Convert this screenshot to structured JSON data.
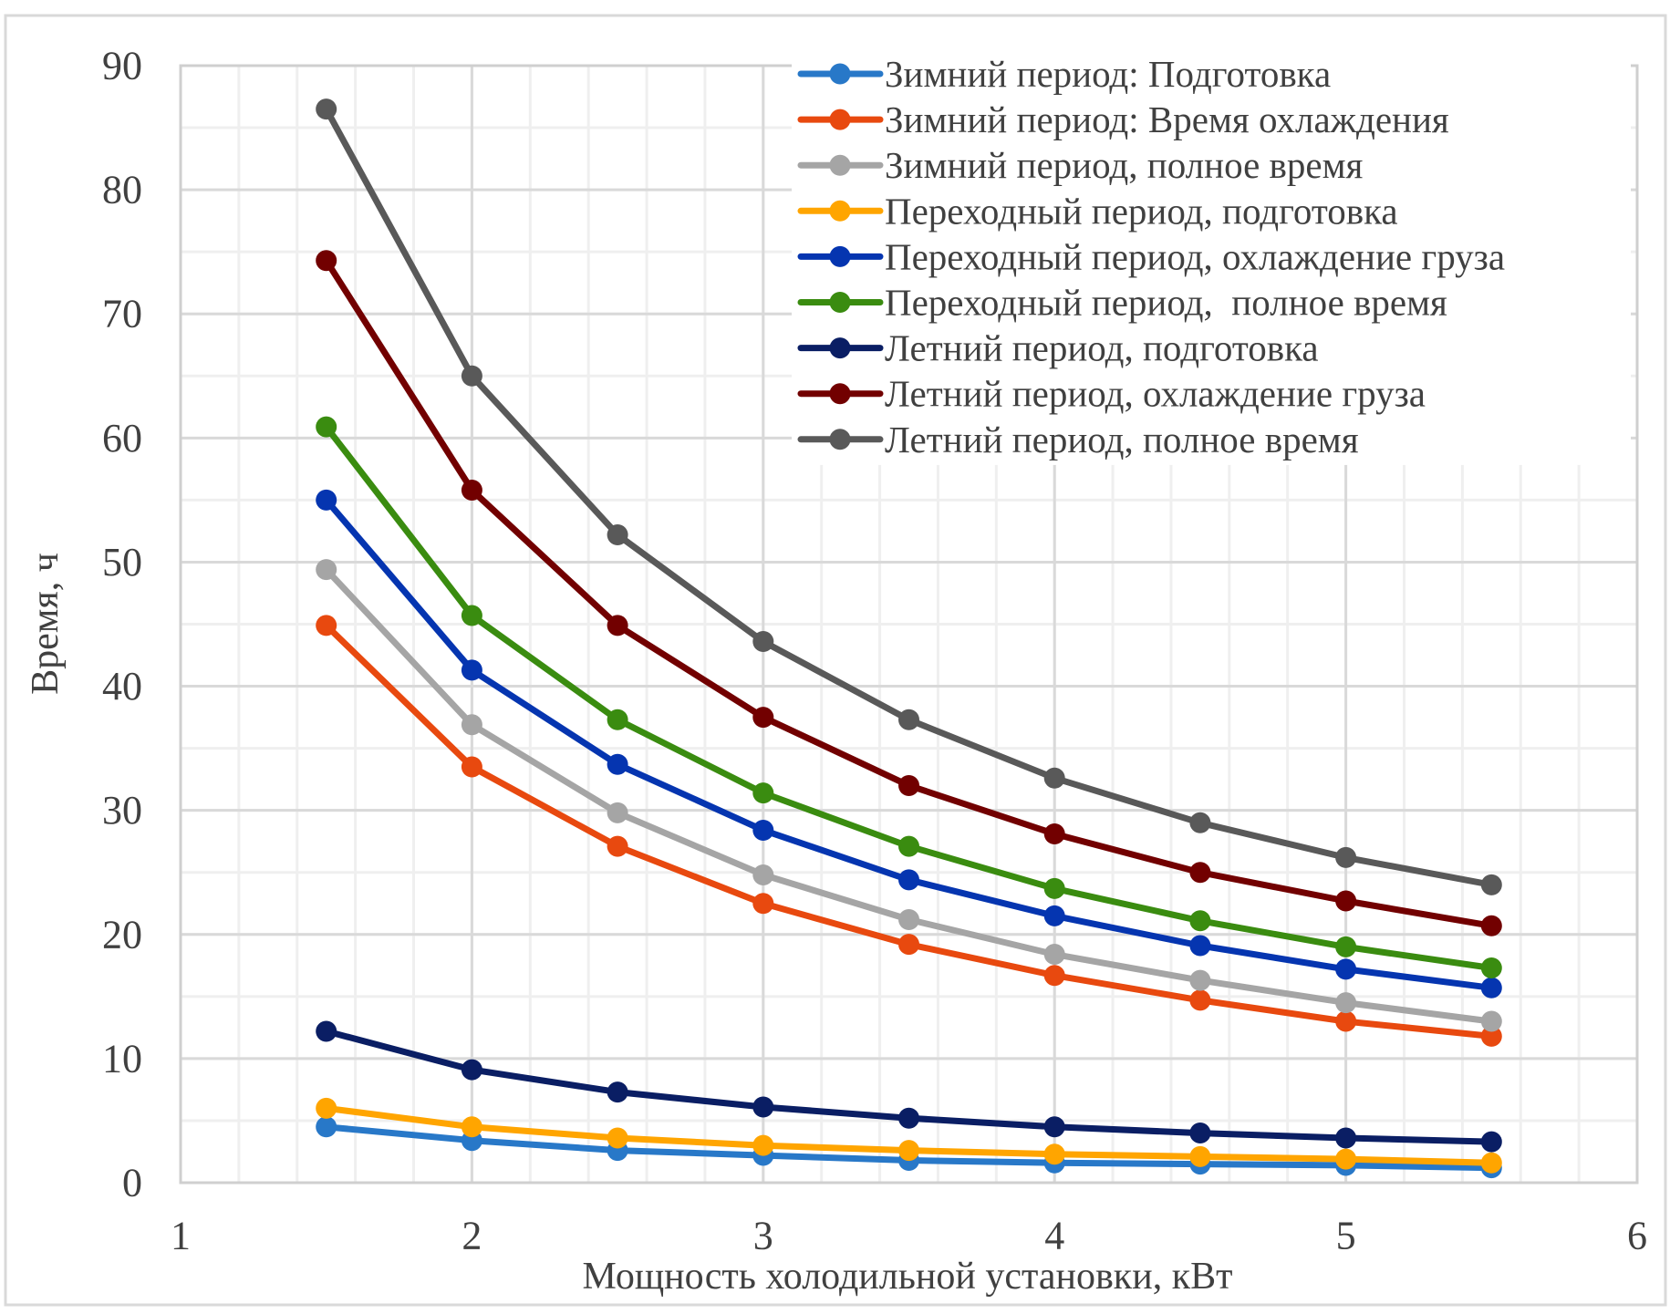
{
  "chart_data": {
    "type": "line",
    "title": "",
    "xlabel": "Мощность холодильной установки, кВт",
    "ylabel": "Время, ч",
    "xlim": [
      1,
      6
    ],
    "ylim": [
      0,
      90
    ],
    "x_ticks": [
      "1",
      "2",
      "3",
      "4",
      "5",
      "6"
    ],
    "y_ticks": [
      "0",
      "10",
      "20",
      "30",
      "40",
      "50",
      "60",
      "70",
      "80",
      "90"
    ],
    "x_tick_values": [
      1,
      2,
      3,
      4,
      5,
      6
    ],
    "y_tick_values": [
      0,
      10,
      20,
      30,
      40,
      50,
      60,
      70,
      80,
      90
    ],
    "x_minor_step": 0.2,
    "y_minor_step": 5,
    "grid": true,
    "legend_position": "top-right",
    "x": [
      1.5,
      2,
      2.5,
      3,
      3.5,
      4,
      4.5,
      5,
      5.5
    ],
    "series": [
      {
        "name": "Зимний период: Подготовка",
        "color": "#2878C8",
        "values": [
          4.5,
          3.4,
          2.6,
          2.2,
          1.8,
          1.6,
          1.5,
          1.4,
          1.2
        ]
      },
      {
        "name": "Зимний период: Время охлаждения",
        "color": "#E8490F",
        "values": [
          44.9,
          33.5,
          27.1,
          22.5,
          19.2,
          16.7,
          14.7,
          13.0,
          11.8
        ]
      },
      {
        "name": "Зимний период, полное время",
        "color": "#A5A5A5",
        "values": [
          49.4,
          36.9,
          29.8,
          24.8,
          21.2,
          18.4,
          16.3,
          14.5,
          13.0
        ]
      },
      {
        "name": "Переходный период, подготовка",
        "color": "#FFA500",
        "values": [
          6.0,
          4.5,
          3.6,
          3.0,
          2.6,
          2.3,
          2.1,
          1.9,
          1.6
        ]
      },
      {
        "name": "Переходный период, охлаждение груза",
        "color": "#0535B0",
        "values": [
          55.0,
          41.3,
          33.7,
          28.4,
          24.4,
          21.5,
          19.1,
          17.2,
          15.7
        ]
      },
      {
        "name": "Переходный период,  полное время",
        "color": "#3A8C10",
        "values": [
          60.9,
          45.7,
          37.3,
          31.4,
          27.1,
          23.7,
          21.1,
          19.0,
          17.3
        ]
      },
      {
        "name": "Летний период, подготовка",
        "color": "#0A1E64",
        "values": [
          12.2,
          9.1,
          7.3,
          6.1,
          5.2,
          4.5,
          4.0,
          3.6,
          3.3
        ]
      },
      {
        "name": "Летний период, охлаждение груза",
        "color": "#720000",
        "values": [
          74.3,
          55.8,
          44.9,
          37.5,
          32.0,
          28.1,
          25.0,
          22.7,
          20.7
        ]
      },
      {
        "name": "Летний период, полное время",
        "color": "#595959",
        "values": [
          86.5,
          65.0,
          52.2,
          43.6,
          37.3,
          32.6,
          29.0,
          26.2,
          24.0
        ]
      }
    ]
  }
}
